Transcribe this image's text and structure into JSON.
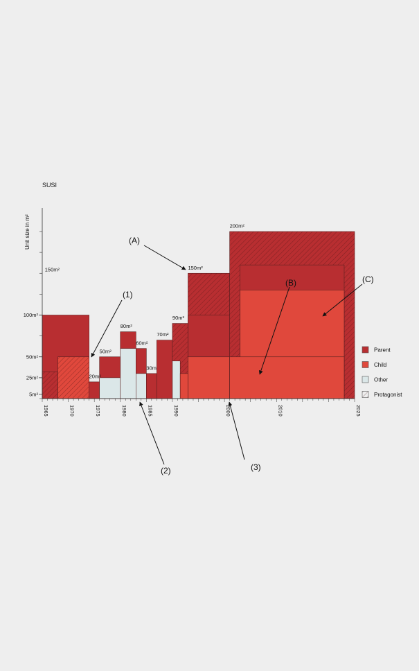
{
  "chart_data": {
    "type": "area",
    "title": "SUSI",
    "ylabel": "Unit size in m²",
    "xlabel": "",
    "xlim": [
      1965,
      2025
    ],
    "ylim": [
      0,
      200
    ],
    "x_ticks": [
      1965,
      1970,
      1975,
      1980,
      1985,
      1990,
      2000,
      2010,
      2025
    ],
    "y_ticks": [
      {
        "value": 5,
        "label": "5m²"
      },
      {
        "value": 25,
        "label": "25m²"
      },
      {
        "value": 50,
        "label": "50m²"
      },
      {
        "value": 100,
        "label": "100m²"
      }
    ],
    "colors": {
      "parent": "#b82e31",
      "child": "#e0483c",
      "other": "#dbe7e8",
      "outline": "#5a2020"
    },
    "legend": {
      "placement": "right",
      "items": [
        {
          "label": "Parent",
          "kind": "parent"
        },
        {
          "label": "Child",
          "kind": "child"
        },
        {
          "label": "Other",
          "kind": "other"
        },
        {
          "label": "Protagonist",
          "kind": "protagonist"
        }
      ]
    },
    "series": [
      {
        "kind": "parent",
        "hatch": false,
        "x0": 1965,
        "x1": 1974,
        "y": 100
      },
      {
        "kind": "parent",
        "hatch": true,
        "x0": 1965,
        "x1": 1968,
        "y": 32
      },
      {
        "kind": "child",
        "hatch": true,
        "x0": 1968,
        "x1": 1974,
        "y": 50
      },
      {
        "kind": "parent",
        "hatch": false,
        "x0": 1974,
        "x1": 1976,
        "y": 20
      },
      {
        "kind": "parent",
        "hatch": false,
        "x0": 1976,
        "x1": 1980,
        "y": 50
      },
      {
        "kind": "other",
        "hatch": false,
        "x0": 1976,
        "x1": 1980,
        "y": 25
      },
      {
        "kind": "parent",
        "hatch": false,
        "x0": 1980,
        "x1": 1983,
        "y": 80
      },
      {
        "kind": "other",
        "hatch": false,
        "x0": 1980,
        "x1": 1983,
        "y": 60
      },
      {
        "kind": "parent",
        "hatch": false,
        "x0": 1983,
        "x1": 1985,
        "y": 60
      },
      {
        "kind": "other",
        "hatch": false,
        "x0": 1983,
        "x1": 1985,
        "y": 30
      },
      {
        "kind": "parent",
        "hatch": false,
        "x0": 1985,
        "x1": 1987,
        "y": 30
      },
      {
        "kind": "parent",
        "hatch": false,
        "x0": 1987,
        "x1": 1990,
        "y": 70
      },
      {
        "kind": "parent",
        "hatch": true,
        "x0": 1990,
        "x1": 1993,
        "y": 90
      },
      {
        "kind": "other",
        "hatch": false,
        "x0": 1990,
        "x1": 1991.5,
        "y": 45
      },
      {
        "kind": "child",
        "hatch": false,
        "x0": 1991.5,
        "x1": 1993,
        "y": 30
      },
      {
        "kind": "parent",
        "hatch": true,
        "x0": 1993,
        "x1": 2001,
        "y": 150
      },
      {
        "kind": "parent",
        "hatch": false,
        "x0": 1993,
        "x1": 2001,
        "y": 100
      },
      {
        "kind": "child",
        "hatch": false,
        "x0": 1993,
        "x1": 2001,
        "y": 50
      },
      {
        "kind": "parent",
        "hatch": true,
        "x0": 2001,
        "x1": 2025,
        "y": 200
      },
      {
        "kind": "parent",
        "hatch": false,
        "x0": 2003,
        "x1": 2023,
        "y": 160
      },
      {
        "kind": "child",
        "hatch": false,
        "x0": 2003,
        "x1": 2023,
        "y": 130
      },
      {
        "kind": "child",
        "hatch": false,
        "x0": 2001,
        "x1": 2023,
        "y": 50
      }
    ],
    "annotations": [
      {
        "label": "150m²",
        "x": 1965.5,
        "y": 150
      },
      {
        "label": "20m²",
        "x": 1974,
        "y": 22
      },
      {
        "label": "50m²",
        "x": 1976,
        "y": 52
      },
      {
        "label": "80m²",
        "x": 1980,
        "y": 82
      },
      {
        "label": "60m²",
        "x": 1983,
        "y": 62
      },
      {
        "label": "30m",
        "x": 1985,
        "y": 32
      },
      {
        "label": "70m²",
        "x": 1987,
        "y": 72
      },
      {
        "label": "90m²",
        "x": 1990,
        "y": 92
      },
      {
        "label": "150m²",
        "x": 1993,
        "y": 152
      },
      {
        "label": "200m²",
        "x": 2001,
        "y": 202
      }
    ],
    "callouts": [
      "(A)",
      "(B)",
      "(C)",
      "(1)",
      "(2)",
      "(3)"
    ]
  }
}
